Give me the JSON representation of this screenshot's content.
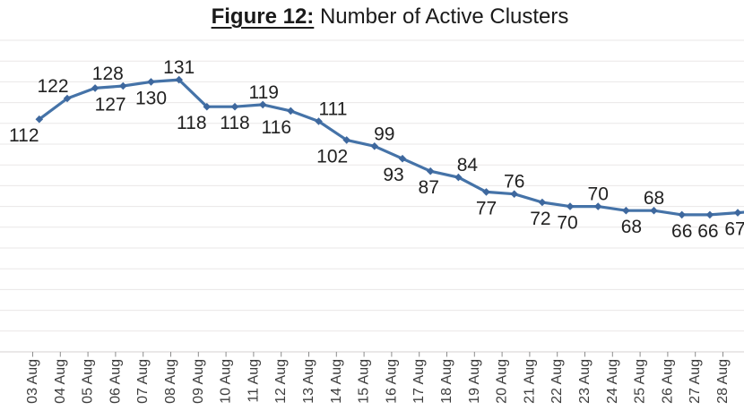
{
  "title": {
    "figure_label": "Figure 12:",
    "title_text": " Number of Active Clusters"
  },
  "chart_data": {
    "type": "line",
    "title": "Figure 12: Number of Active Clusters",
    "x_categories": [
      "03 Aug",
      "04 Aug",
      "05 Aug",
      "06 Aug",
      "07 Aug",
      "08 Aug",
      "09 Aug",
      "10 Aug",
      "11 Aug",
      "12 Aug",
      "13 Aug",
      "14 Aug",
      "15 Aug",
      "16 Aug",
      "17 Aug",
      "18 Aug",
      "19 Aug",
      "20 Aug",
      "21 Aug",
      "22 Aug",
      "23 Aug",
      "24 Aug",
      "25 Aug",
      "26 Aug",
      "27 Aug",
      "28 Aug"
    ],
    "series": [
      {
        "name": "Number of Active Clusters",
        "values": [
          112,
          122,
          127,
          128,
          130,
          131,
          118,
          118,
          119,
          116,
          111,
          102,
          99,
          93,
          87,
          84,
          77,
          76,
          72,
          70,
          70,
          68,
          68,
          66,
          66,
          67
        ]
      }
    ],
    "data_labels_visible": true,
    "label_side": [
      "below",
      "above",
      "below",
      "above",
      "below",
      "above",
      "below",
      "below",
      "above",
      "below",
      "above",
      "below",
      "above",
      "below",
      "below",
      "above",
      "below",
      "above",
      "below",
      "below",
      "above",
      "below",
      "above",
      "below",
      "below",
      "below"
    ],
    "label_dx": [
      -17,
      -16,
      17,
      -17,
      0,
      0,
      -17,
      0,
      1,
      -16,
      16,
      -16,
      11,
      -10,
      -2,
      10,
      0,
      0,
      -2,
      -3,
      0,
      6,
      0,
      0,
      -2,
      -3
    ],
    "ylim": [
      0,
      150
    ],
    "grid_step": 10,
    "grid": "horizontal",
    "y_axis_labels_visible": false,
    "legend": "none",
    "x_tick_label_rotation_deg": 90,
    "continues_beyond_right_edge": true,
    "colors": {
      "line": "#4573a8",
      "marker": "#3e689e",
      "gridline": "#eae7e7",
      "axis_line": "#d4d0d0",
      "tick": "#8c8c8c",
      "data_label": "#212121",
      "axis_label": "#3d3d3d",
      "title": "#1a1a1a"
    }
  }
}
